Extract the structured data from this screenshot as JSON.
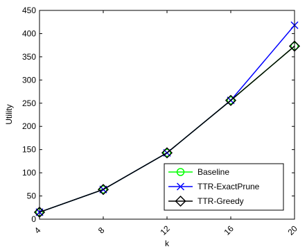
{
  "chart_data": {
    "type": "line",
    "xlabel": "k",
    "ylabel": "Utility",
    "x": [
      4,
      8,
      12,
      16,
      20
    ],
    "xticks": [
      "4",
      "8",
      "12",
      "16",
      "20"
    ],
    "yticks": [
      "0",
      "50",
      "100",
      "150",
      "200",
      "250",
      "300",
      "350",
      "400",
      "450"
    ],
    "xlim": [
      4,
      20
    ],
    "ylim": [
      0,
      450
    ],
    "grid": false,
    "legend_position": "bottom-right",
    "series": [
      {
        "name": "Baseline",
        "values": [
          15,
          64,
          143,
          256,
          373
        ],
        "color": "#00ff00",
        "marker": "circle"
      },
      {
        "name": "TTR-ExactPrune",
        "values": [
          15,
          64,
          143,
          256,
          418
        ],
        "color": "#0000ff",
        "marker": "x"
      },
      {
        "name": "TTR-Greedy",
        "values": [
          15,
          64,
          143,
          256,
          373
        ],
        "color": "#000000",
        "marker": "diamond"
      }
    ]
  }
}
